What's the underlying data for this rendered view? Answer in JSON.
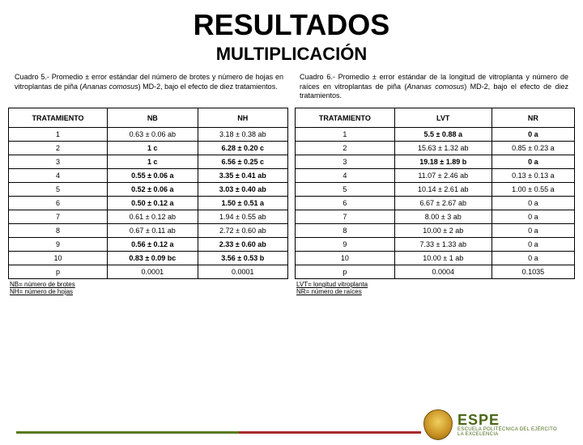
{
  "title": "RESULTADOS",
  "subtitle": "MULTIPLICACIÓN",
  "caption_left_prefix": "Cuadro 5.- Promedio ± error estándar del número de brotes y número de hojas en vitroplantas de piña (",
  "caption_left_italic": "Ananas comosus",
  "caption_left_suffix": ") MD-2, bajo el efecto de diez tratamientos.",
  "caption_right_prefix": "Cuadro 6.- Promedio ± error estándar de la longitud de vitroplanta y número de raíces en vitroplantas de piña (",
  "caption_right_italic": "Ananas comosus",
  "caption_right_suffix": ") MD-2, bajo el efecto de diez tratamientos.",
  "table_left": {
    "headers": [
      "TRATAMIENTO",
      "NB",
      "NH"
    ],
    "rows": [
      {
        "t": "1",
        "nb": "0.63 ± 0.06 ab",
        "nh": "3.18 ± 0.38 ab",
        "bold": false
      },
      {
        "t": "2",
        "nb": "1 c",
        "nh": "6.28 ± 0.20 c",
        "bold": true
      },
      {
        "t": "3",
        "nb": "1 c",
        "nh": "6.56 ± 0.25 c",
        "bold": true
      },
      {
        "t": "4",
        "nb": "0.55 ± 0.06 a",
        "nh": "3.35 ± 0.41 ab",
        "bold": true
      },
      {
        "t": "5",
        "nb": "0.52 ± 0.06 a",
        "nh": "3.03 ± 0.40 ab",
        "bold": true
      },
      {
        "t": "6",
        "nb": "0.50 ± 0.12 a",
        "nh": "1.50 ± 0.51 a",
        "bold": true
      },
      {
        "t": "7",
        "nb": "0.61 ± 0.12 ab",
        "nh": "1.94 ± 0.55 ab",
        "bold": false
      },
      {
        "t": "8",
        "nb": "0.67 ± 0.11 ab",
        "nh": "2.72 ± 0.60 ab",
        "bold": false
      },
      {
        "t": "9",
        "nb": "0.56 ± 0.12 a",
        "nh": "2.33 ± 0.60 ab",
        "bold": true
      },
      {
        "t": "10",
        "nb": "0.83 ± 0.09 bc",
        "nh": "3.56 ± 0.53 b",
        "bold": true
      },
      {
        "t": "p",
        "nb": "0.0001",
        "nh": "0.0001",
        "bold": false
      }
    ],
    "footnote": "NB= número de brotes\nNH= número de hojas"
  },
  "table_right": {
    "headers": [
      "TRATAMIENTO",
      "LVT",
      "NR"
    ],
    "rows": [
      {
        "t": "1",
        "lvt": "5.5  ± 0.88 a",
        "nr": "0 a",
        "bold": true
      },
      {
        "t": "2",
        "lvt": "15.63  ± 1.32 ab",
        "nr": "0.85  ± 0.23 a",
        "bold": false
      },
      {
        "t": "3",
        "lvt": "19.18  ± 1.89 b",
        "nr": "0 a",
        "bold": true
      },
      {
        "t": "4",
        "lvt": "11.07  ± 2.46 ab",
        "nr": "0.13  ± 0.13 a",
        "bold": false
      },
      {
        "t": "5",
        "lvt": "10.14  ± 2.61 ab",
        "nr": "1.00  ± 0.55 a",
        "bold": false
      },
      {
        "t": "6",
        "lvt": "6.67  ± 2.67 ab",
        "nr": "0 a",
        "bold": false
      },
      {
        "t": "7",
        "lvt": "8.00  ± 3 ab",
        "nr": "0 a",
        "bold": false
      },
      {
        "t": "8",
        "lvt": "10.00  ± 2 ab",
        "nr": "0 a",
        "bold": false
      },
      {
        "t": "9",
        "lvt": "7.33  ± 1.33 ab",
        "nr": "0 a",
        "bold": false
      },
      {
        "t": "10",
        "lvt": "10.00  ± 1 ab",
        "nr": "0 a",
        "bold": false
      },
      {
        "t": "p",
        "lvt": "0.0004",
        "nr": "0.1035",
        "bold": false
      }
    ],
    "footnote": "LVT= longitud vitroplanta\nNR= número de raíces"
  },
  "logo": {
    "name": "ESPE",
    "sub1": "ESCUELA POLITÉCNICA DEL EJÉRCITO",
    "sub2": "LA EXCELENCIA"
  },
  "colors": {
    "green": "#5a7a1e",
    "red": "#a82a2a",
    "logo_green": "#4a6818"
  }
}
